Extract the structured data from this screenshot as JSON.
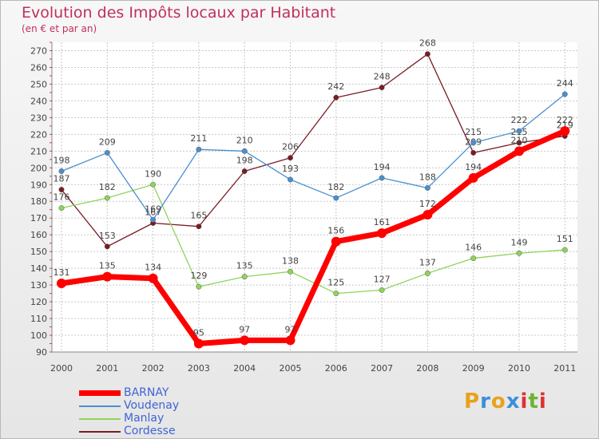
{
  "title": "Evolution des Impôts locaux par Habitant",
  "subtitle": "(en € et par an)",
  "brand": {
    "letters": [
      "P",
      "r",
      "o",
      "x",
      "i",
      "t",
      "i"
    ],
    "colors": [
      "#e8a21a",
      "#3b8fd9",
      "#e8a21a",
      "#3b8fd9",
      "#e03030",
      "#6cb32f",
      "#e03030"
    ]
  },
  "chart_data": {
    "type": "line",
    "title": "Evolution des Impôts locaux par Habitant",
    "ylabel": "(en € et par an)",
    "categories": [
      "2000",
      "2001",
      "2002",
      "2003",
      "2004",
      "2005",
      "2006",
      "2007",
      "2008",
      "2009",
      "2010",
      "2011"
    ],
    "y_ticks": [
      90,
      100,
      110,
      120,
      130,
      140,
      150,
      160,
      170,
      180,
      190,
      200,
      210,
      220,
      230,
      240,
      250,
      260,
      270
    ],
    "ylim": [
      90,
      275
    ],
    "grid": true,
    "series": [
      {
        "name": "Cordesse",
        "color": "#7a1c24",
        "values": [
          187,
          153,
          167,
          165,
          198,
          206,
          242,
          248,
          268,
          209,
          215,
          219
        ]
      },
      {
        "name": "Manlay",
        "color": "#8fd45c",
        "values": [
          176,
          182,
          190,
          129,
          135,
          138,
          125,
          127,
          137,
          146,
          149,
          151
        ]
      },
      {
        "name": "Voudenay",
        "color": "#4a8fd0",
        "values": [
          198,
          209,
          169,
          211,
          210,
          193,
          182,
          194,
          188,
          215,
          222,
          244
        ]
      },
      {
        "name": "BARNAY",
        "color": "#ff0000",
        "values": [
          131,
          135,
          134,
          95,
          97,
          97,
          156,
          161,
          172,
          194,
          210,
          222
        ]
      }
    ],
    "legend": [
      {
        "name": "BARNAY",
        "color": "#ff0000"
      },
      {
        "name": "Voudenay",
        "color": "#4a8fd0"
      },
      {
        "name": "Manlay",
        "color": "#8fd45c"
      },
      {
        "name": "Cordesse",
        "color": "#7a1c24"
      }
    ]
  }
}
